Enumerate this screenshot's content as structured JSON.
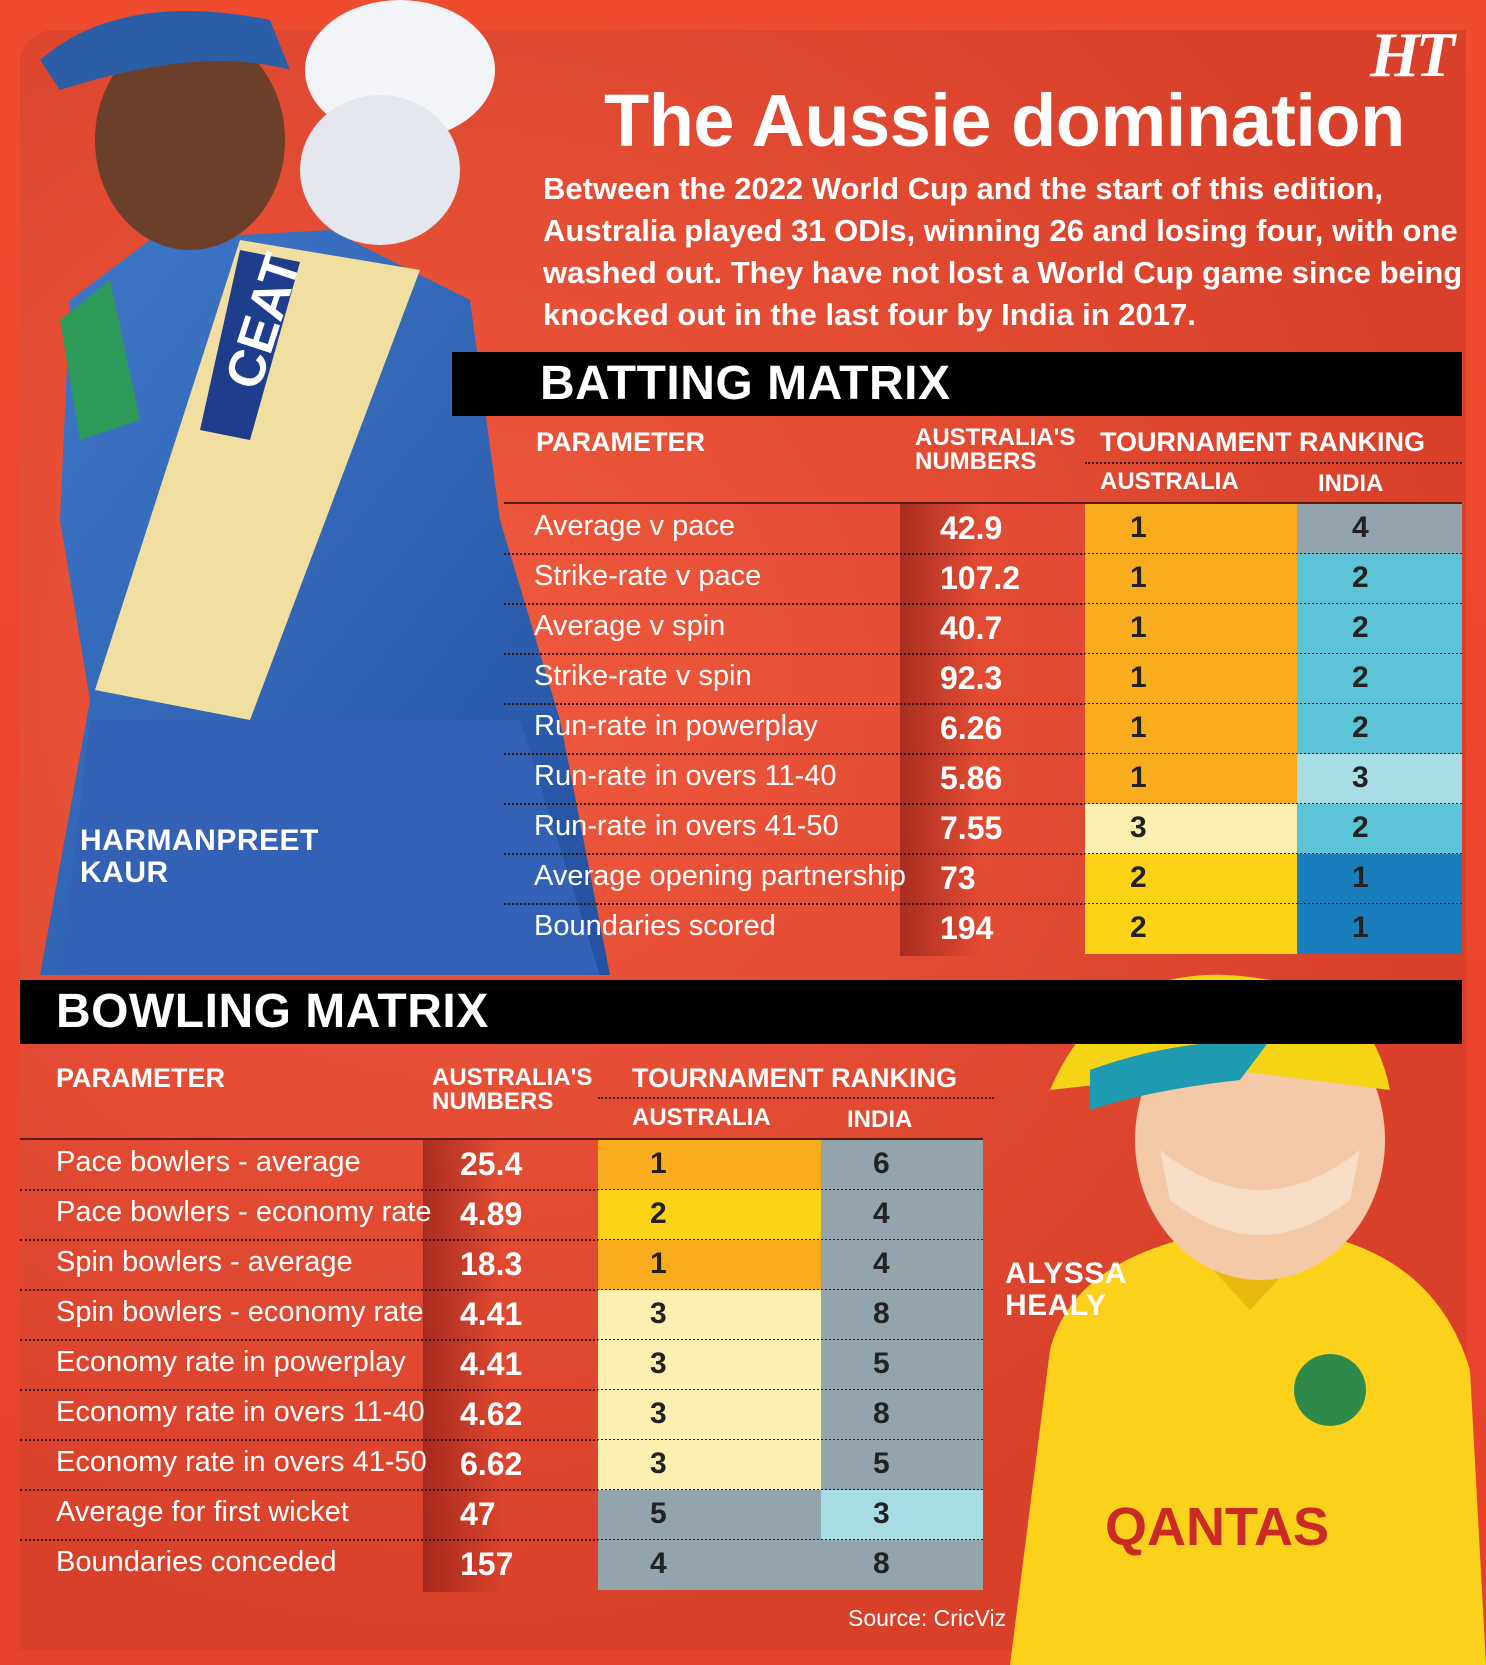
{
  "header": {
    "logo": "HT",
    "title": "The Aussie domination",
    "description": "Between the 2022 World Cup and the start of this edition, Australia played 31 ODIs, winning 26 and losing four, with one washed out. They have not lost a World Cup game since being knocked out in the last four by India in 2017."
  },
  "players": {
    "left_name": "HARMANPREET KAUR",
    "right_name": "ALYSSA HEALY"
  },
  "batting": {
    "title": "BATTING MATRIX",
    "headers": {
      "parameter": "PARAMETER",
      "numbers": "AUSTRALIA'S NUMBERS",
      "ranking": "TOURNAMENT RANKING",
      "australia": "AUSTRALIA",
      "india": "INDIA"
    },
    "rows": [
      {
        "param": "Average v pace",
        "value": "42.9",
        "aus": "1",
        "ind": "4",
        "aus_color": "#f9ad1e",
        "ind_color": "#93a4ad"
      },
      {
        "param": "Strike-rate v pace",
        "value": "107.2",
        "aus": "1",
        "ind": "2",
        "aus_color": "#f9ad1e",
        "ind_color": "#5cc4d6"
      },
      {
        "param": "Average v spin",
        "value": "40.7",
        "aus": "1",
        "ind": "2",
        "aus_color": "#f9ad1e",
        "ind_color": "#5cc4d6"
      },
      {
        "param": "Strike-rate v spin",
        "value": "92.3",
        "aus": "1",
        "ind": "2",
        "aus_color": "#f9ad1e",
        "ind_color": "#5cc4d6"
      },
      {
        "param": "Run-rate in powerplay",
        "value": "6.26",
        "aus": "1",
        "ind": "2",
        "aus_color": "#f9ad1e",
        "ind_color": "#5cc4d6"
      },
      {
        "param": "Run-rate in overs 11-40",
        "value": "5.86",
        "aus": "1",
        "ind": "3",
        "aus_color": "#f9ad1e",
        "ind_color": "#a9dde6"
      },
      {
        "param": "Run-rate in overs 41-50",
        "value": "7.55",
        "aus": "3",
        "ind": "2",
        "aus_color": "#fbf0b0",
        "ind_color": "#5cc4d6"
      },
      {
        "param": "Average opening partnership",
        "value": "73",
        "aus": "2",
        "ind": "1",
        "aus_color": "#fcd316",
        "ind_color": "#1a7ebd"
      },
      {
        "param": "Boundaries scored",
        "value": "194",
        "aus": "2",
        "ind": "1",
        "aus_color": "#fcd316",
        "ind_color": "#1a7ebd"
      }
    ]
  },
  "bowling": {
    "title": "BOWLING MATRIX",
    "headers": {
      "parameter": "PARAMETER",
      "numbers": "AUSTRALIA'S NUMBERS",
      "ranking": "TOURNAMENT RANKING",
      "australia": "AUSTRALIA",
      "india": "INDIA"
    },
    "rows": [
      {
        "param": "Pace bowlers - average",
        "value": "25.4",
        "aus": "1",
        "ind": "6",
        "aus_color": "#f9ad1e",
        "ind_color": "#93a4ad"
      },
      {
        "param": "Pace bowlers - economy rate",
        "value": "4.89",
        "aus": "2",
        "ind": "4",
        "aus_color": "#fcd316",
        "ind_color": "#93a4ad"
      },
      {
        "param": "Spin bowlers - average",
        "value": "18.3",
        "aus": "1",
        "ind": "4",
        "aus_color": "#f9ad1e",
        "ind_color": "#93a4ad"
      },
      {
        "param": "Spin bowlers - economy rate",
        "value": "4.41",
        "aus": "3",
        "ind": "8",
        "aus_color": "#fbf0b0",
        "ind_color": "#93a4ad"
      },
      {
        "param": "Economy rate in powerplay",
        "value": "4.41",
        "aus": "3",
        "ind": "5",
        "aus_color": "#fbf0b0",
        "ind_color": "#93a4ad"
      },
      {
        "param": "Economy rate in overs 11-40",
        "value": "4.62",
        "aus": "3",
        "ind": "8",
        "aus_color": "#fbf0b0",
        "ind_color": "#93a4ad"
      },
      {
        "param": "Economy rate in overs 41-50",
        "value": "6.62",
        "aus": "3",
        "ind": "5",
        "aus_color": "#fbf0b0",
        "ind_color": "#93a4ad"
      },
      {
        "param": "Average for first wicket",
        "value": "47",
        "aus": "5",
        "ind": "3",
        "aus_color": "#93a4ad",
        "ind_color": "#a9dde6"
      },
      {
        "param": "Boundaries conceded",
        "value": "157",
        "aus": "4",
        "ind": "8",
        "aus_color": "#93a4ad",
        "ind_color": "#93a4ad"
      }
    ]
  },
  "source": "Source: CricViz"
}
